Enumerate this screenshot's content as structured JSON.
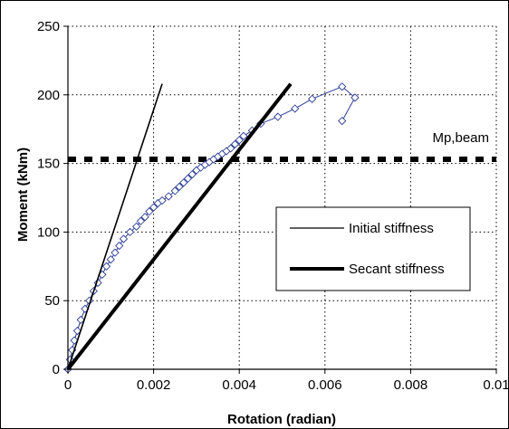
{
  "chart_data": {
    "type": "line",
    "title": "",
    "xlabel": "Rotation (radian)",
    "ylabel": "Moment (kNm)",
    "xlim": [
      0,
      0.01
    ],
    "ylim": [
      0,
      250
    ],
    "x_ticks": [
      0,
      0.002,
      0.004,
      0.006,
      0.008,
      0.01
    ],
    "x_tick_labels": [
      "0",
      "0.002",
      "0.004",
      "0.006",
      "0.008",
      "0.01"
    ],
    "y_ticks": [
      0,
      50,
      100,
      150,
      200,
      250
    ],
    "y_tick_labels": [
      "0",
      "50",
      "100",
      "150",
      "200",
      "250"
    ],
    "grid": "dotted, both axes",
    "legend": {
      "placement": "center-right",
      "entries": [
        "Initial stiffness",
        "Secant stiffness"
      ]
    },
    "series": [
      {
        "name": "",
        "style": "thin blue line with hollow diamond markers",
        "color": "#2b3d96",
        "x": [
          0,
          5e-05,
          0.0001,
          0.00015,
          0.00022,
          0.0003,
          0.0004,
          0.0005,
          0.0006,
          0.0007,
          0.0008,
          0.0009,
          0.001,
          0.0011,
          0.0012,
          0.0013,
          0.00145,
          0.0016,
          0.0017,
          0.0018,
          0.0019,
          0.002,
          0.0021,
          0.0022,
          0.00235,
          0.0025,
          0.0026,
          0.0027,
          0.0028,
          0.0029,
          0.003,
          0.0031,
          0.0032,
          0.0033,
          0.0034,
          0.0035,
          0.0036,
          0.0037,
          0.0038,
          0.0039,
          0.004,
          0.0041,
          0.0043,
          0.0045,
          0.0049,
          0.0053,
          0.0057,
          0.0064,
          0.0067,
          0.0064
        ],
        "y": [
          0,
          7,
          14,
          21,
          28,
          36,
          44,
          50,
          57,
          63,
          69,
          75,
          80,
          85,
          90,
          95,
          100,
          104,
          108,
          111,
          115,
          118,
          121,
          123,
          126,
          130,
          133,
          136,
          139,
          142,
          145,
          147,
          149,
          151,
          153,
          155,
          157,
          159,
          161,
          164,
          167,
          170,
          174,
          179,
          184,
          190,
          197,
          206,
          198,
          181
        ]
      },
      {
        "name": "Initial stiffness",
        "style": "thin black line",
        "color": "#000000",
        "x": [
          0,
          0.0022
        ],
        "y": [
          0,
          208
        ]
      },
      {
        "name": "Secant stiffness",
        "style": "thick black line",
        "color": "#000000",
        "x": [
          0,
          0.0052
        ],
        "y": [
          0,
          208
        ]
      }
    ],
    "reference_lines": [
      {
        "label": "Mp,beam",
        "y": 153,
        "style": "thick black dashed horizontal line"
      }
    ]
  }
}
